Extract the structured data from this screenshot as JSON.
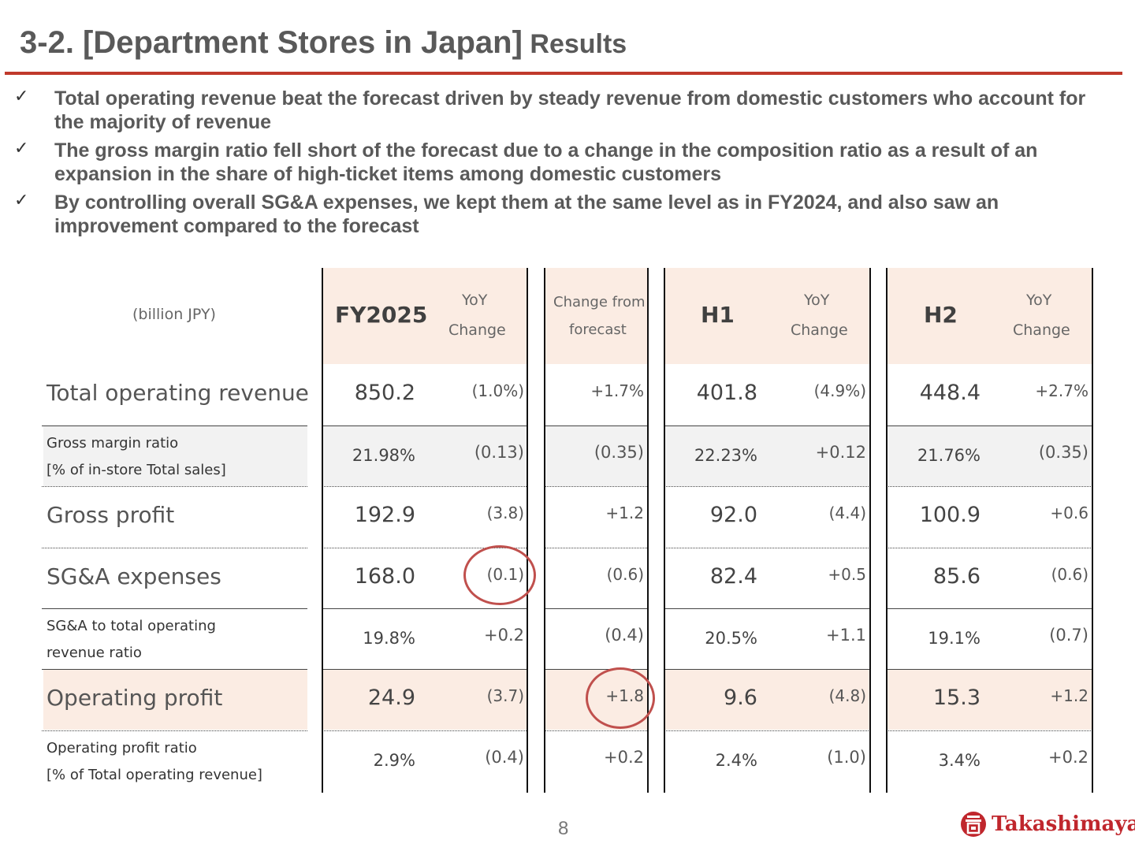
{
  "header": {
    "title_main": "3-2.  [Department Stores in Japan]",
    "title_sub": " Results",
    "rule_color": "#c0392b"
  },
  "bullets": [
    "Total operating revenue beat the forecast driven by steady revenue from domestic customers who account for the majority of revenue",
    "The gross margin ratio fell short of the forecast due to a change in the composition ratio as a result of an expansion in the share of high-ticket items among domestic customers",
    "By controlling overall SG&A expenses, we kept them at the same level as in FY2024, and also saw an improvement compared to the forecast"
  ],
  "table": {
    "unit": "(billion JPY)",
    "headers": {
      "fy2025": "FY2025",
      "fy_yoy_1": "YoY",
      "fy_yoy_2": "Change",
      "fc_1": "Change from",
      "fc_2": "forecast",
      "h1": "H1",
      "h1_yoy_1": "YoY",
      "h1_yoy_2": "Change",
      "h2": "H2",
      "h2_yoy_1": "YoY",
      "h2_yoy_2": "Change"
    },
    "rows": [
      {
        "label1": "Total operating revenue",
        "label2": "",
        "fy": "850.2",
        "fy_yoy": "(1.0%)",
        "fc": "+1.7%",
        "h1": "401.8",
        "h1_yoy": "(4.9%)",
        "h2": "448.4",
        "h2_yoy": "+2.7%"
      },
      {
        "label1": "Gross margin ratio",
        "label2": "[% of in-store Total sales]",
        "fy": "21.98%",
        "fy_yoy": "(0.13)",
        "fc": "(0.35)",
        "h1": "22.23%",
        "h1_yoy": "+0.12",
        "h2": "21.76%",
        "h2_yoy": "(0.35)"
      },
      {
        "label1": "Gross profit",
        "label2": "",
        "fy": "192.9",
        "fy_yoy": "(3.8)",
        "fc": "+1.2",
        "h1": "92.0",
        "h1_yoy": "(4.4)",
        "h2": "100.9",
        "h2_yoy": "+0.6"
      },
      {
        "label1": "SG&A expenses",
        "label2": "",
        "fy": "168.0",
        "fy_yoy": "(0.1)",
        "fc": "(0.6)",
        "h1": "82.4",
        "h1_yoy": "+0.5",
        "h2": "85.6",
        "h2_yoy": "(0.6)"
      },
      {
        "label1": "SG&A to total operating",
        "label2": "revenue ratio",
        "fy": "19.8%",
        "fy_yoy": "+0.2",
        "fc": "(0.4)",
        "h1": "20.5%",
        "h1_yoy": "+1.1",
        "h2": "19.1%",
        "h2_yoy": "(0.7)"
      },
      {
        "label1": "Operating profit",
        "label2": "",
        "fy": "24.9",
        "fy_yoy": "(3.7)",
        "fc": "+1.8",
        "h1": "9.6",
        "h1_yoy": "(4.8)",
        "h2": "15.3",
        "h2_yoy": "+1.2"
      },
      {
        "label1": "Operating profit ratio",
        "label2": "[% of Total operating revenue]",
        "fy": "2.9%",
        "fy_yoy": "(0.4)",
        "fc": "+0.2",
        "h1": "2.4%",
        "h1_yoy": "(1.0)",
        "h2": "3.4%",
        "h2_yoy": "+0.2"
      }
    ],
    "highlight_color": "#c0504d",
    "header_fill": "#fbece3",
    "gray_fill": "#f2f2f2"
  },
  "footer": {
    "page_number": "8",
    "logo_text": "Takashimaya",
    "logo_color": "#c0272d"
  }
}
